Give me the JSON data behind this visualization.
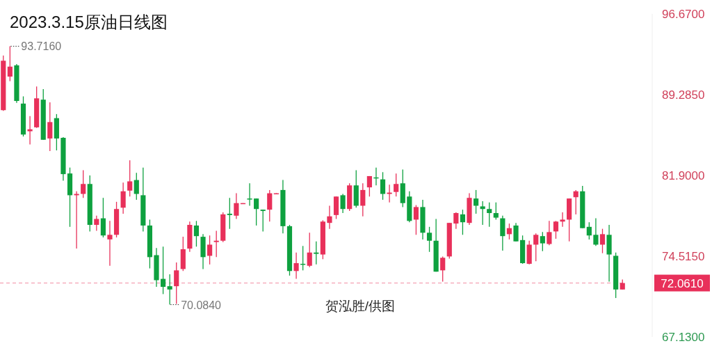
{
  "chart_data": {
    "type": "candlestick",
    "title": "2023.3.15原油日线图",
    "categories": [
      null,
      null,
      null,
      null,
      null,
      null,
      null,
      null,
      null,
      null,
      null,
      null,
      null,
      null,
      null,
      null,
      null,
      null,
      null,
      null,
      null,
      null,
      null,
      null,
      null,
      null,
      null,
      null,
      null,
      null,
      null,
      null,
      null,
      null,
      null,
      null,
      null,
      null,
      null,
      null,
      null,
      null,
      null,
      null,
      null,
      null,
      null,
      null,
      null,
      null,
      null,
      null,
      null,
      null,
      null,
      null,
      null,
      null,
      null,
      null,
      null,
      null,
      null,
      null,
      null,
      null,
      null,
      null,
      null,
      null,
      null,
      null,
      null,
      null,
      null,
      null,
      null,
      null,
      null,
      null,
      null,
      null,
      null,
      null,
      null,
      null,
      null,
      null,
      null,
      null,
      null,
      null,
      null,
      null
    ],
    "ohlc": [
      [
        87.87,
        92.87,
        87.81,
        92.39
      ],
      [
        90.94,
        93.716,
        90.52,
        91.85
      ],
      [
        91.97,
        92.09,
        88.53,
        88.71
      ],
      [
        88.47,
        89.13,
        85.46,
        85.64
      ],
      [
        85.94,
        87.33,
        84.73,
        86.12
      ],
      [
        86.3,
        90.04,
        86.24,
        88.95
      ],
      [
        88.83,
        89.8,
        85.16,
        85.16
      ],
      [
        85.28,
        88.59,
        84.13,
        86.78
      ],
      [
        87.14,
        87.51,
        84.19,
        85.28
      ],
      [
        85.34,
        85.4,
        81.42,
        82.02
      ],
      [
        82.08,
        82.62,
        77.2,
        80.09
      ],
      [
        80.09,
        80.45,
        75.21,
        80.21
      ],
      [
        80.21,
        82.38,
        79.85,
        81.12
      ],
      [
        81.12,
        81.9,
        76.78,
        77.38
      ],
      [
        77.38,
        78.22,
        76.84,
        77.92
      ],
      [
        77.98,
        79.85,
        76.23,
        76.41
      ],
      [
        76.05,
        77.74,
        73.64,
        76.47
      ],
      [
        76.47,
        79.49,
        76.23,
        78.83
      ],
      [
        78.95,
        81.24,
        78.4,
        80.45
      ],
      [
        80.51,
        83.29,
        79.97,
        81.36
      ],
      [
        81.48,
        82.14,
        79.67,
        80.21
      ],
      [
        80.09,
        82.62,
        76.78,
        77.32
      ],
      [
        77.32,
        77.86,
        73.4,
        74.43
      ],
      [
        74.61,
        75.27,
        71.71,
        72.32
      ],
      [
        72.44,
        75.39,
        71.05,
        71.71
      ],
      [
        71.77,
        72.86,
        70.084,
        71.47
      ],
      [
        71.77,
        73.94,
        70.15,
        73.22
      ],
      [
        73.34,
        76.29,
        73.16,
        75.15
      ],
      [
        75.21,
        77.68,
        74.91,
        77.38
      ],
      [
        77.32,
        77.74,
        75.39,
        76.35
      ],
      [
        76.29,
        76.53,
        73.34,
        74.43
      ],
      [
        74.55,
        76.41,
        73.76,
        75.57
      ],
      [
        75.81,
        76.84,
        74.43,
        75.93
      ],
      [
        75.93,
        78.52,
        75.81,
        78.34
      ],
      [
        78.4,
        79.85,
        77.02,
        78.28
      ],
      [
        78.22,
        80.27,
        77.92,
        79.37
      ],
      [
        79.31,
        79.37,
        79.31,
        79.37
      ],
      [
        79.79,
        81.18,
        79.13,
        79.73
      ],
      [
        79.79,
        79.79,
        77.32,
        78.83
      ],
      [
        78.77,
        78.77,
        76.78,
        78.65
      ],
      [
        78.77,
        80.57,
        77.68,
        80.27
      ],
      [
        80.21,
        80.27,
        80.21,
        80.27
      ],
      [
        80.57,
        81.48,
        76.6,
        77.26
      ],
      [
        77.26,
        77.38,
        72.74,
        73.16
      ],
      [
        73.16,
        74.85,
        72.44,
        73.88
      ],
      [
        73.82,
        75.45,
        73.22,
        73.76
      ],
      [
        73.64,
        76.66,
        73.52,
        74.85
      ],
      [
        74.85,
        75.87,
        73.76,
        74.73
      ],
      [
        74.67,
        77.8,
        74.24,
        77.68
      ],
      [
        77.56,
        79.13,
        77.02,
        78.16
      ],
      [
        78.28,
        79.97,
        77.92,
        79.97
      ],
      [
        80.09,
        80.21,
        78.46,
        78.83
      ],
      [
        78.83,
        81.18,
        78.65,
        80.99
      ],
      [
        80.99,
        82.38,
        78.95,
        79.13
      ],
      [
        79.13,
        81.18,
        78.16,
        80.57
      ],
      [
        80.81,
        81.84,
        79.97,
        81.84
      ],
      [
        81.72,
        82.62,
        80.99,
        81.66
      ],
      [
        81.54,
        82.2,
        79.67,
        80.21
      ],
      [
        80.21,
        81.06,
        79.43,
        80.33
      ],
      [
        80.39,
        82.08,
        79.97,
        81.12
      ],
      [
        81.18,
        82.44,
        79.01,
        79.37
      ],
      [
        79.97,
        80.45,
        77.62,
        77.74
      ],
      [
        77.86,
        79.19,
        76.47,
        79.01
      ],
      [
        79.01,
        79.67,
        76.05,
        76.66
      ],
      [
        76.66,
        77.2,
        74.91,
        75.93
      ],
      [
        75.93,
        77.92,
        73.1,
        73.1
      ],
      [
        73.22,
        74.49,
        72.19,
        74.37
      ],
      [
        74.49,
        77.56,
        74.3,
        77.56
      ],
      [
        77.5,
        78.52,
        77.02,
        78.46
      ],
      [
        78.34,
        78.77,
        76.47,
        77.62
      ],
      [
        77.56,
        80.27,
        77.38,
        79.85
      ],
      [
        79.79,
        80.57,
        78.4,
        79.13
      ],
      [
        79.07,
        79.55,
        77.38,
        78.83
      ],
      [
        78.83,
        79.43,
        77.2,
        78.46
      ],
      [
        78.46,
        79.43,
        77.86,
        78.04
      ],
      [
        77.98,
        78.22,
        75.03,
        76.35
      ],
      [
        76.53,
        77.5,
        76.05,
        77.08
      ],
      [
        77.32,
        77.56,
        75.87,
        75.87
      ],
      [
        75.99,
        76.41,
        73.82,
        73.88
      ],
      [
        73.82,
        75.93,
        73.76,
        75.57
      ],
      [
        75.57,
        76.6,
        74.06,
        76.47
      ],
      [
        76.35,
        76.72,
        74.97,
        75.69
      ],
      [
        75.63,
        77.74,
        75.51,
        76.72
      ],
      [
        76.78,
        77.74,
        76.11,
        77.68
      ],
      [
        77.68,
        78.52,
        77.2,
        77.86
      ],
      [
        77.86,
        79.79,
        75.87,
        79.79
      ],
      [
        79.91,
        80.57,
        78.34,
        80.45
      ],
      [
        80.45,
        80.94,
        77.08,
        77.08
      ],
      [
        77.2,
        77.62,
        76.05,
        76.41
      ],
      [
        76.47,
        77.98,
        75.45,
        75.57
      ],
      [
        75.57,
        77.02,
        74.79,
        76.53
      ],
      [
        76.47,
        77.38,
        72.19,
        74.67
      ],
      [
        74.55,
        74.85,
        70.69,
        71.47
      ],
      [
        71.47,
        72.38,
        71.47,
        72.061
      ]
    ],
    "colors": [
      "#e8305a",
      "#e8305a",
      "#0ea13f",
      "#0ea13f",
      "#e8305a",
      "#e8305a",
      "#0ea13f",
      "#e8305a",
      "#0ea13f",
      "#0ea13f",
      "#0ea13f",
      "#e8305a",
      "#e8305a",
      "#0ea13f",
      "#e8305a",
      "#0ea13f",
      "#e8305a",
      "#e8305a",
      "#e8305a",
      "#e8305a",
      "#0ea13f",
      "#0ea13f",
      "#0ea13f",
      "#0ea13f",
      "#0ea13f",
      "#0ea13f",
      "#e8305a",
      "#e8305a",
      "#e8305a",
      "#0ea13f",
      "#0ea13f",
      "#e8305a",
      "#e8305a",
      "#e8305a",
      "#0ea13f",
      "#e8305a",
      "#e8305a",
      "#0ea13f",
      "#0ea13f",
      "#0ea13f",
      "#e8305a",
      "#e8305a",
      "#0ea13f",
      "#0ea13f",
      "#e8305a",
      "#0ea13f",
      "#e8305a",
      "#0ea13f",
      "#e8305a",
      "#e8305a",
      "#e8305a",
      "#0ea13f",
      "#e8305a",
      "#0ea13f",
      "#e8305a",
      "#e8305a",
      "#0ea13f",
      "#0ea13f",
      "#e8305a",
      "#e8305a",
      "#0ea13f",
      "#0ea13f",
      "#e8305a",
      "#0ea13f",
      "#0ea13f",
      "#0ea13f",
      "#e8305a",
      "#e8305a",
      "#e8305a",
      "#0ea13f",
      "#e8305a",
      "#0ea13f",
      "#0ea13f",
      "#0ea13f",
      "#0ea13f",
      "#0ea13f",
      "#e8305a",
      "#0ea13f",
      "#0ea13f",
      "#e8305a",
      "#e8305a",
      "#0ea13f",
      "#e8305a",
      "#e8305a",
      "#e8305a",
      "#e8305a",
      "#e8305a",
      "#0ea13f",
      "#0ea13f",
      "#0ea13f",
      "#e8305a",
      "#0ea13f",
      "#0ea13f",
      "#e8305a"
    ],
    "ylim": [
      67.13,
      96.67
    ],
    "yticks": [
      {
        "value": 96.67,
        "label": "96.6700"
      },
      {
        "value": 89.285,
        "label": "89.2850"
      },
      {
        "value": 81.9,
        "label": "81.9000"
      },
      {
        "value": 74.515,
        "label": "74.5150"
      },
      {
        "value": 67.13,
        "label": "67.1300"
      }
    ],
    "ref_lines": [
      {
        "axis": "y",
        "value": 72.061,
        "label": "72.0610",
        "color": "#e8305a",
        "line_style": "dashed"
      }
    ],
    "annotations": [
      "93.7160",
      "70.0840",
      "贺泓胜/供图"
    ],
    "grid": false,
    "tick_labels": "y"
  }
}
